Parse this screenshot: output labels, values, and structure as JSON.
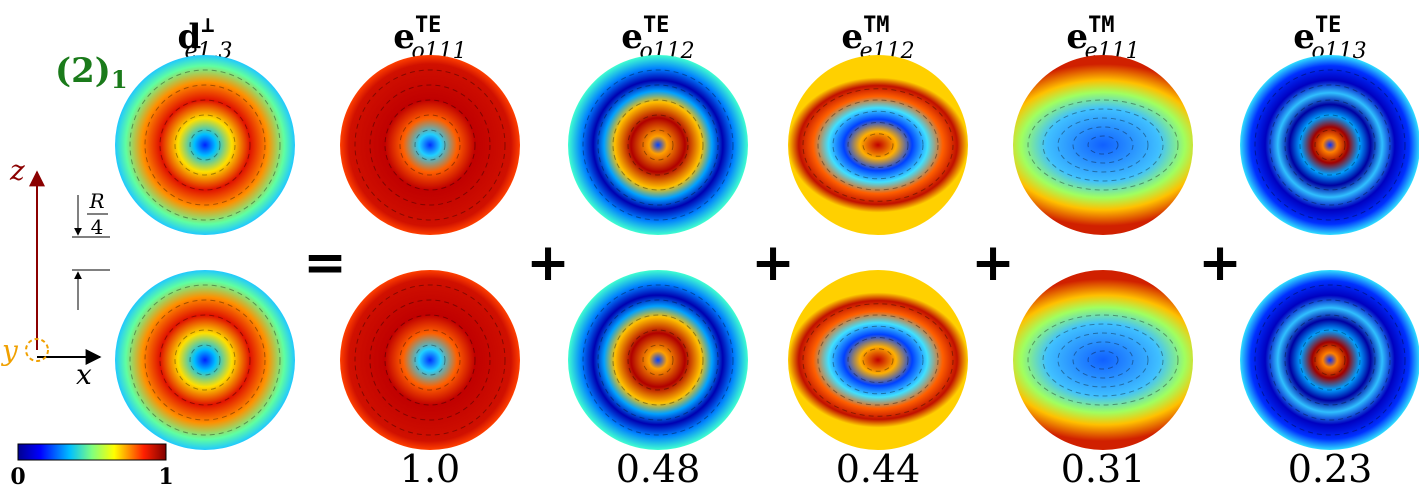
{
  "figure": {
    "label": {
      "base": "(2)",
      "sub": "1"
    },
    "source": {
      "base": "d",
      "sup": "⊥",
      "sub": "e1,3"
    },
    "terms": [
      {
        "operator": "=",
        "base": "e",
        "sup": "TE",
        "sub": "o111",
        "weight": "1.0"
      },
      {
        "operator": "+",
        "base": "e",
        "sup": "TE",
        "sub": "o112",
        "weight": "0.48"
      },
      {
        "operator": "+",
        "base": "e",
        "sup": "TM",
        "sub": "e112",
        "weight": "0.44"
      },
      {
        "operator": "+",
        "base": "e",
        "sup": "TM",
        "sub": "e111",
        "weight": "0.31"
      },
      {
        "operator": "+",
        "base": "e",
        "sup": "TE",
        "sub": "o113",
        "weight": "0.23"
      }
    ],
    "axes": {
      "z": "z",
      "x": "x",
      "y": "y",
      "scale": {
        "num": "R",
        "den": "4"
      }
    },
    "colorbar": {
      "min": "0",
      "max": "1"
    }
  }
}
